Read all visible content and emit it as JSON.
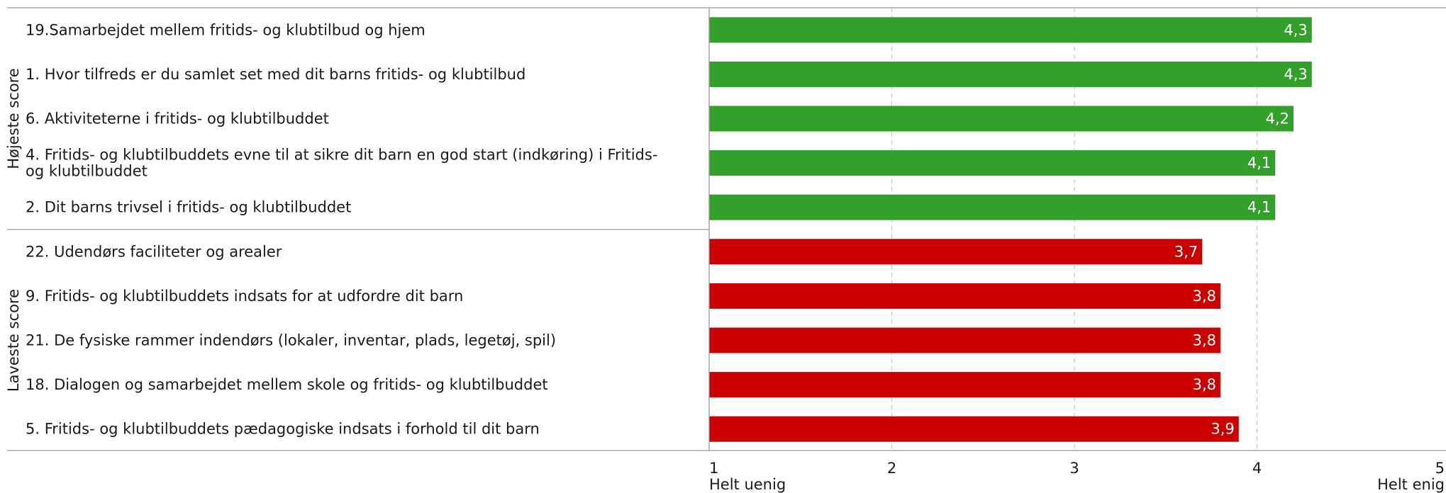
{
  "chart_data": {
    "type": "bar",
    "orientation": "horizontal",
    "xlim": [
      1,
      5
    ],
    "x_ticks": [
      1,
      2,
      3,
      4,
      5
    ],
    "x_tick_labels": [
      "1",
      "2",
      "3",
      "4",
      "5"
    ],
    "x_min_label": "Helt uenig",
    "x_max_label": "Helt enig",
    "grid": "vertical dashed",
    "groups": [
      {
        "name": "Højeste score",
        "color": "#33a02c",
        "items": [
          {
            "label": "19.Samarbejdet mellem fritids- og klubtilbud og hjem",
            "value": 4.3,
            "value_label": "4,3"
          },
          {
            "label": "1. Hvor tilfreds er du samlet set med dit barns fritids- og klubtilbud",
            "value": 4.3,
            "value_label": "4,3"
          },
          {
            "label": "6. Aktiviteterne i fritids- og klubtilbuddet",
            "value": 4.2,
            "value_label": "4,2"
          },
          {
            "label": "4. Fritids- og klubtilbuddets evne til at sikre dit barn en god start (indkøring) i Fritids- og klubtilbuddet",
            "label_lines": [
              "4. Fritids- og klubtilbuddets evne til at sikre dit barn en god start (indkøring) i Fritids-",
              "og klubtilbuddet"
            ],
            "value": 4.1,
            "value_label": "4,1"
          },
          {
            "label": "2. Dit barns trivsel i fritids- og klubtilbuddet",
            "value": 4.1,
            "value_label": "4,1"
          }
        ]
      },
      {
        "name": "Laveste score",
        "color": "#cc0000",
        "items": [
          {
            "label": "22. Udendørs faciliteter og arealer",
            "value": 3.7,
            "value_label": "3,7"
          },
          {
            "label": "9. Fritids- og klubtilbuddets indsats for at udfordre dit barn",
            "value": 3.8,
            "value_label": "3,8"
          },
          {
            "label": "21. De fysiske rammer indendørs (lokaler, inventar, plads, legetøj, spil)",
            "value": 3.8,
            "value_label": "3,8"
          },
          {
            "label": "18. Dialogen og samarbejdet mellem skole og fritids- og klubtilbuddet",
            "value": 3.8,
            "value_label": "3,8"
          },
          {
            "label": "5. Fritids- og klubtilbuddets pædagogiske indsats i forhold til dit barn",
            "value": 3.9,
            "value_label": "3,9"
          }
        ]
      }
    ]
  }
}
